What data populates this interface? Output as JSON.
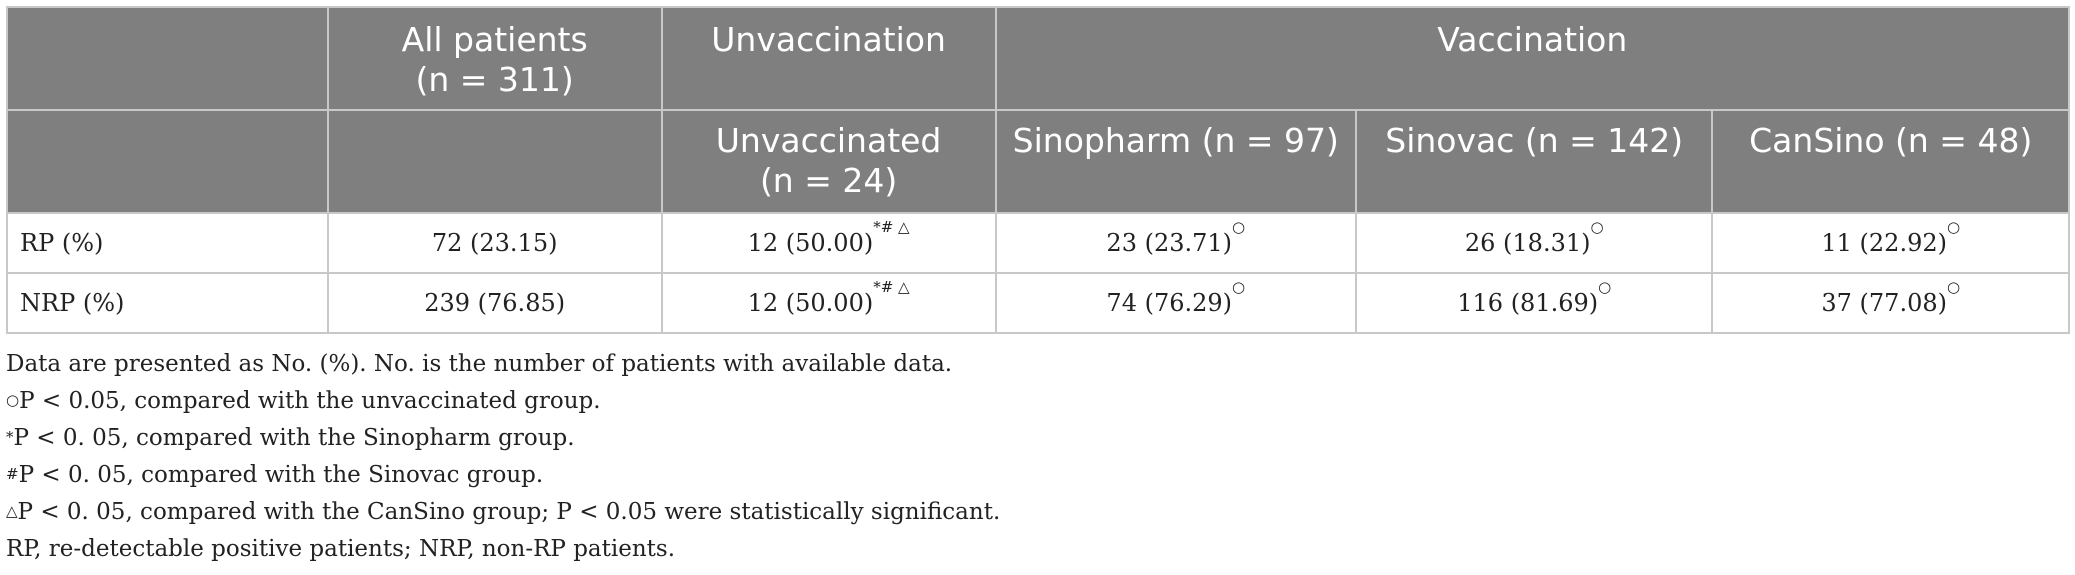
{
  "header": {
    "all_patients_line1": "All patients",
    "all_patients_line2": "(n = 311)",
    "unvaccination": "Unvaccination",
    "vaccination": "Vaccination",
    "unvaccinated_line1": "Unvaccinated",
    "unvaccinated_line2": "(n = 24)",
    "sinopharm": "Sinopharm (n = 97)",
    "sinovac": "Sinovac (n = 142)",
    "cansino": "CanSino (n = 48)"
  },
  "rows": [
    {
      "label": "RP (%)",
      "all": "72 (23.15)",
      "unvacc": "12 (50.00)",
      "unvacc_sup": "*# △",
      "sinopharm": "23 (23.71)",
      "sinopharm_sup": "○",
      "sinovac": "26 (18.31)",
      "sinovac_sup": "○",
      "cansino": "11 (22.92)",
      "cansino_sup": "○"
    },
    {
      "label": "NRP (%)",
      "all": "239 (76.85)",
      "unvacc": "12 (50.00)",
      "unvacc_sup": "*# △",
      "sinopharm": "74 (76.29)",
      "sinopharm_sup": "○",
      "sinovac": "116 (81.69)",
      "sinovac_sup": "○",
      "cansino": "37 (77.08)",
      "cansino_sup": "○"
    }
  ],
  "notes": {
    "n1": "Data are presented as No. (%). No. is the number of patients with available data.",
    "n2_sup": "○",
    "n2": "P < 0.05, compared with the unvaccinated group.",
    "n3_sup": "*",
    "n3": "P < 0. 05, compared with the Sinopharm group.",
    "n4_sup": "#",
    "n4": "P < 0. 05, compared with the Sinovac group.",
    "n5_sup": "△",
    "n5": "P < 0. 05, compared with the CanSino group; P < 0.05 were statistically significant.",
    "n6": "RP, re-detectable positive patients; NRP, non-RP patients."
  }
}
